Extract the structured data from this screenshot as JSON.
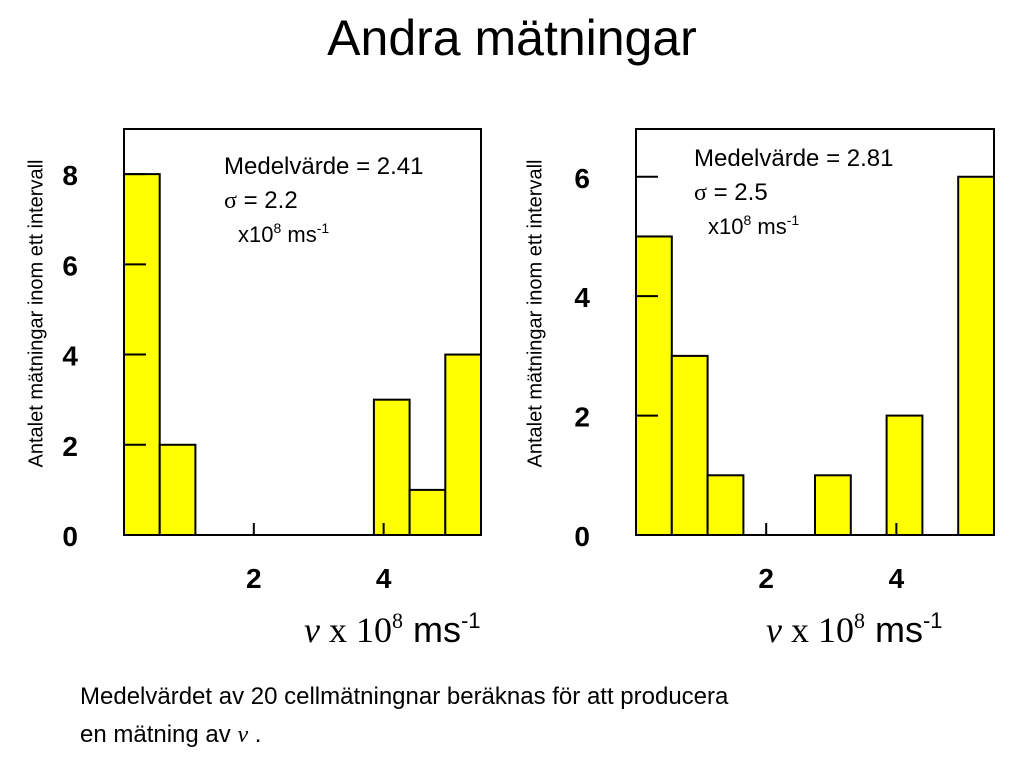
{
  "title": "Andra mätningar",
  "ylabel": "Antalet mätningar inom ett intervall",
  "xlabel": {
    "var": "v",
    "times": " x ",
    "base": "10",
    "exp": "8",
    "unit": " ms",
    "unit_exp": "-1"
  },
  "stat_labels": {
    "mean": "Medelvärde = ",
    "sigma_symbol": "σ",
    "sigma_eq": " = ",
    "unit_prefix": "x10",
    "unit_exp": "8",
    "unit": " ms",
    "unit_unit_exp": "-1"
  },
  "caption": {
    "line1": "Medelvärdet av 20 cellmätningnar beräknas   för att producera",
    "line2_prefix": "en mätning av ",
    "line2_var": "v",
    "line2_suffix": " ."
  },
  "chart_data": [
    {
      "type": "bar",
      "histogram": true,
      "bin_edges": [
        0,
        0.55,
        1.1,
        1.65,
        2.2,
        2.75,
        3.3,
        3.85,
        4.4,
        4.95,
        5.5
      ],
      "values": [
        8,
        2,
        0,
        0,
        0,
        0,
        0,
        3,
        1,
        4
      ],
      "xlim": [
        0,
        5.5
      ],
      "ylim": [
        0,
        9
      ],
      "xticks": [
        "2",
        "4"
      ],
      "yticks": [
        "0",
        "2",
        "4",
        "6",
        "8"
      ],
      "mean": "2.41",
      "sigma": "2.2",
      "bar_color": "#ffff00"
    },
    {
      "type": "bar",
      "histogram": true,
      "bin_edges": [
        0,
        0.55,
        1.1,
        1.65,
        2.2,
        2.75,
        3.3,
        3.85,
        4.4,
        4.95,
        5.5
      ],
      "values": [
        5,
        3,
        1,
        0,
        0,
        1,
        0,
        2,
        0,
        6
      ],
      "xlim": [
        0,
        5.5
      ],
      "ylim": [
        0,
        6.8
      ],
      "xticks": [
        "2",
        "4"
      ],
      "yticks": [
        "0",
        "2",
        "4",
        "6"
      ],
      "mean": "2.81",
      "sigma": "2.5",
      "bar_color": "#ffff00"
    }
  ]
}
